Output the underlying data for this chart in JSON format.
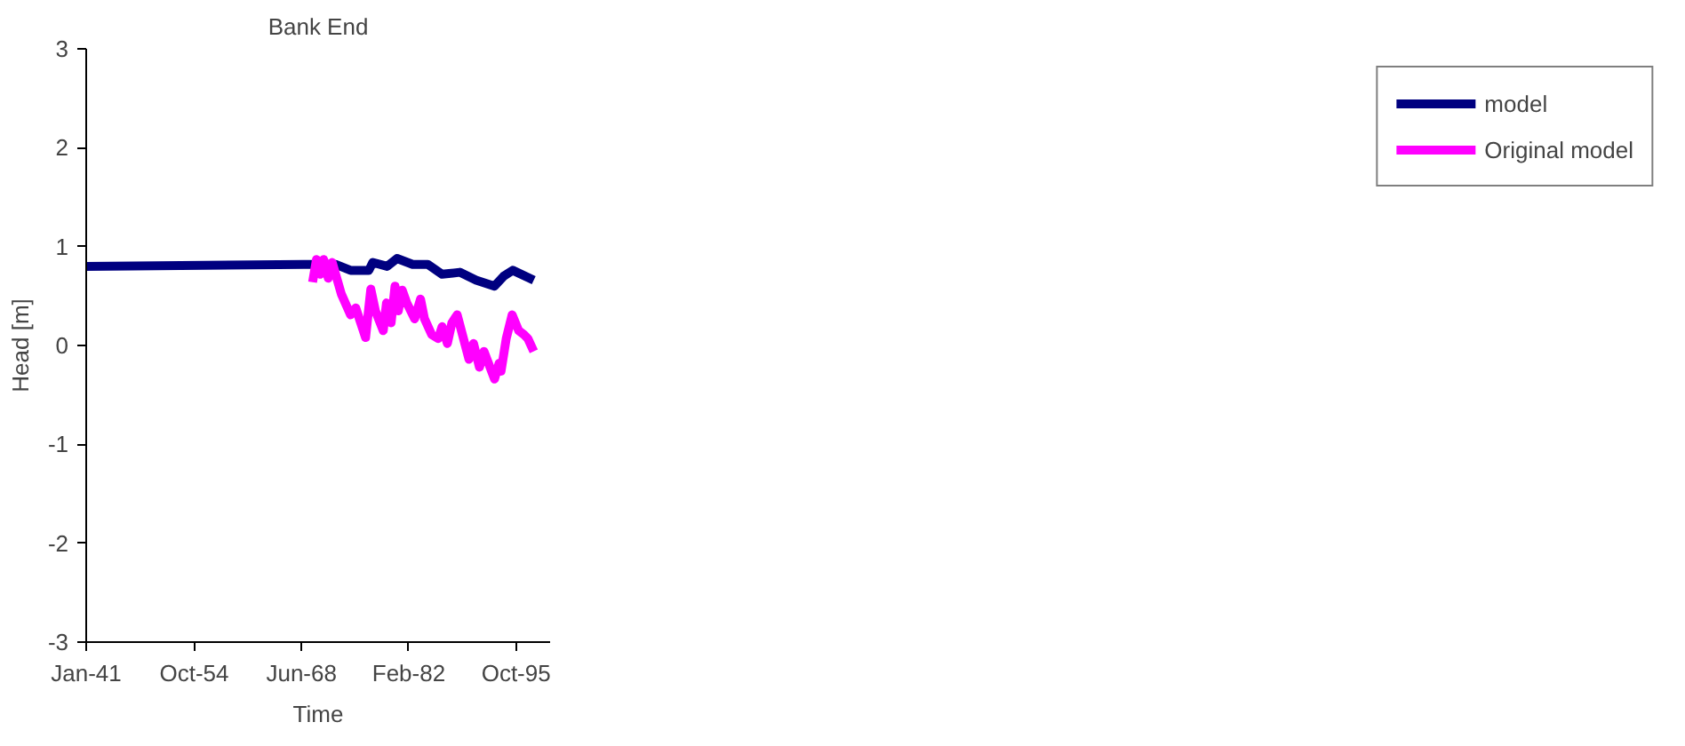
{
  "chart_data": {
    "type": "line",
    "title": "Bank End",
    "xlabel": "Time",
    "ylabel": "Head [m]",
    "xlim": [
      "1941-01",
      "2000-02"
    ],
    "xticks": [
      {
        "value": "1941-01",
        "label": "Jan-41"
      },
      {
        "value": "1954-10",
        "label": "Oct-54"
      },
      {
        "value": "1968-06",
        "label": "Jun-68"
      },
      {
        "value": "1982-02",
        "label": "Feb-82"
      },
      {
        "value": "1995-10",
        "label": "Oct-95"
      }
    ],
    "ylim": [
      -3,
      3
    ],
    "yticks": [
      -3,
      -2,
      -1,
      0,
      1,
      2,
      3
    ],
    "grid": false,
    "legend": "right",
    "marker": "none",
    "line_style": "solid",
    "series": [
      {
        "name": "model",
        "color": "#000080",
        "x": [
          "1941-01",
          "1968-10",
          "1972-10",
          "1974-09",
          "1977-01",
          "1977-07",
          "1979-05",
          "1980-08",
          "1982-08",
          "1984-07",
          "1986-05",
          "1988-08",
          "1990-09",
          "1993-01",
          "1994-03",
          "1995-05",
          "1998-01"
        ],
        "values": [
          0.8,
          0.82,
          0.82,
          0.76,
          0.76,
          0.84,
          0.8,
          0.88,
          0.82,
          0.82,
          0.72,
          0.74,
          0.66,
          0.6,
          0.7,
          0.76,
          0.66
        ]
      },
      {
        "name": "Original model",
        "color": "#ff00ff",
        "x": [
          "1969-11",
          "1970-05",
          "1970-11",
          "1971-04",
          "1971-11",
          "1972-05",
          "1973-07",
          "1974-09",
          "1975-05",
          "1976-08",
          "1977-04",
          "1977-11",
          "1978-11",
          "1979-04",
          "1979-11",
          "1980-05",
          "1980-10",
          "1981-04",
          "1981-11",
          "1982-11",
          "1983-08",
          "1984-02",
          "1985-01",
          "1985-11",
          "1986-05",
          "1987-01",
          "1987-08",
          "1988-04",
          "1989-10",
          "1990-05",
          "1991-02",
          "1991-09",
          "1993-01",
          "1993-08",
          "1993-11",
          "1994-07",
          "1995-04",
          "1996-02",
          "1996-10",
          "1997-04",
          "1998-01"
        ],
        "values": [
          0.64,
          0.87,
          0.72,
          0.87,
          0.68,
          0.84,
          0.52,
          0.31,
          0.38,
          0.08,
          0.57,
          0.35,
          0.15,
          0.43,
          0.23,
          0.6,
          0.35,
          0.56,
          0.43,
          0.27,
          0.47,
          0.27,
          0.11,
          0.07,
          0.19,
          0.02,
          0.23,
          0.31,
          -0.14,
          0.02,
          -0.22,
          -0.06,
          -0.34,
          -0.18,
          -0.26,
          0.07,
          0.31,
          0.15,
          0.11,
          0.07,
          -0.06
        ]
      }
    ]
  }
}
